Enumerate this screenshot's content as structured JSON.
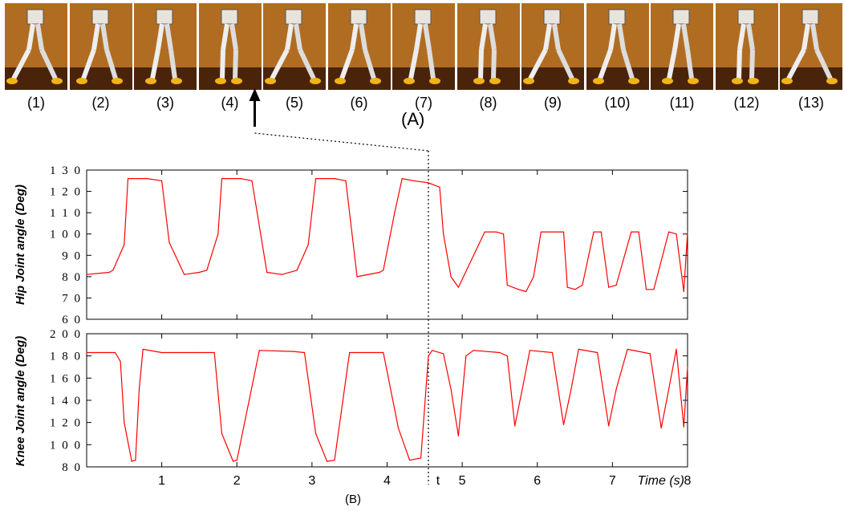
{
  "panel_a": {
    "label": "(A)",
    "frames": [
      "(1)",
      "(2)",
      "(3)",
      "(4)",
      "(5)",
      "(6)",
      "(7)",
      "(8)",
      "(9)",
      "(10)",
      "(11)",
      "(12)",
      "(13)"
    ],
    "arrow_points_to_frame": 4
  },
  "panel_b": {
    "label": "(B)",
    "marker_label": "t",
    "marker_time": 4.55
  },
  "colors": {
    "series": "#ff0000",
    "frame_bg": "#b06d22",
    "floor": "#4a240a",
    "shoe": "#f2b21c"
  },
  "chart_data": [
    {
      "type": "line",
      "ylabel": "Hip Joint angle (Deg)",
      "xlabel": "Time (s)",
      "xlim": [
        0,
        8
      ],
      "ylim": [
        60,
        130
      ],
      "yticks": [
        "60",
        "70",
        "80",
        "90",
        "100",
        "110",
        "120",
        "130"
      ],
      "ytick_text": [
        "6 0",
        "7 0",
        "8 0",
        "9 0",
        "1 0 0",
        "1 1 0",
        "1 2 0",
        "1 3 0"
      ],
      "xticks": [
        1,
        2,
        3,
        4,
        5,
        6,
        7,
        8
      ],
      "series": [
        {
          "x": [
            0,
            0.3,
            0.35,
            0.5,
            0.55,
            0.8,
            1.0,
            1.1,
            1.3,
            1.5,
            1.6,
            1.75,
            1.8,
            2.05,
            2.2,
            2.4,
            2.6,
            2.8,
            2.95,
            3.05,
            3.3,
            3.45,
            3.6,
            3.9,
            3.95,
            4.1,
            4.2,
            4.35,
            4.55,
            4.7,
            4.75,
            4.85,
            4.95,
            5.3,
            5.45,
            5.55,
            5.6,
            5.75,
            5.85,
            5.95,
            6.05,
            6.35,
            6.4,
            6.5,
            6.6,
            6.75,
            6.85,
            6.95,
            7.05,
            7.25,
            7.35,
            7.45,
            7.55,
            7.75,
            7.85,
            7.95,
            8.0
          ],
          "y": [
            81,
            82,
            83,
            95,
            126,
            126,
            125,
            96,
            81,
            82,
            83,
            100,
            126,
            126,
            125,
            82,
            81,
            83,
            95,
            126,
            126,
            125,
            80,
            82,
            83,
            110,
            126,
            125,
            124,
            122,
            100,
            80,
            75,
            101,
            101,
            100,
            76,
            74,
            73,
            80,
            101,
            101,
            75,
            74,
            76,
            101,
            101,
            75,
            76,
            101,
            101,
            74,
            74,
            101,
            100,
            73,
            101
          ]
        }
      ]
    },
    {
      "type": "line",
      "ylabel": "Knee Joint angle (Deg)",
      "xlabel": "Time (s)",
      "xlim": [
        0,
        8
      ],
      "ylim": [
        80,
        200
      ],
      "yticks": [
        "80",
        "100",
        "120",
        "140",
        "160",
        "180",
        "200"
      ],
      "ytick_text": [
        "8 0",
        "1 0 0",
        "1 2 0",
        "1 4 0",
        "1 6 0",
        "1 8 0",
        "2 0 0"
      ],
      "xticks": [
        1,
        2,
        3,
        4,
        5,
        6,
        7,
        8
      ],
      "x_tick_text": [
        "1",
        "2",
        "3",
        "4",
        "5",
        "6",
        "7",
        "8"
      ],
      "series": [
        {
          "x": [
            0,
            0.38,
            0.45,
            0.5,
            0.6,
            0.65,
            0.7,
            0.75,
            1.0,
            1.5,
            1.7,
            1.8,
            1.95,
            2.0,
            2.3,
            2.75,
            2.9,
            3.05,
            3.2,
            3.3,
            3.5,
            3.95,
            4.15,
            4.3,
            4.45,
            4.55,
            4.6,
            4.75,
            4.85,
            4.95,
            5.05,
            5.15,
            5.5,
            5.6,
            5.7,
            5.8,
            5.9,
            6.2,
            6.35,
            6.45,
            6.55,
            6.8,
            6.95,
            7.05,
            7.2,
            7.5,
            7.65,
            7.75,
            7.85,
            7.95,
            8.0
          ],
          "y": [
            183,
            183,
            175,
            120,
            85,
            86,
            150,
            186,
            183,
            183,
            183,
            110,
            85,
            86,
            185,
            184,
            183,
            110,
            85,
            86,
            183,
            183,
            115,
            86,
            88,
            180,
            185,
            182,
            150,
            108,
            180,
            185,
            183,
            180,
            117,
            150,
            185,
            183,
            118,
            150,
            186,
            183,
            117,
            150,
            186,
            182,
            115,
            150,
            186,
            116,
            170
          ]
        }
      ]
    }
  ]
}
